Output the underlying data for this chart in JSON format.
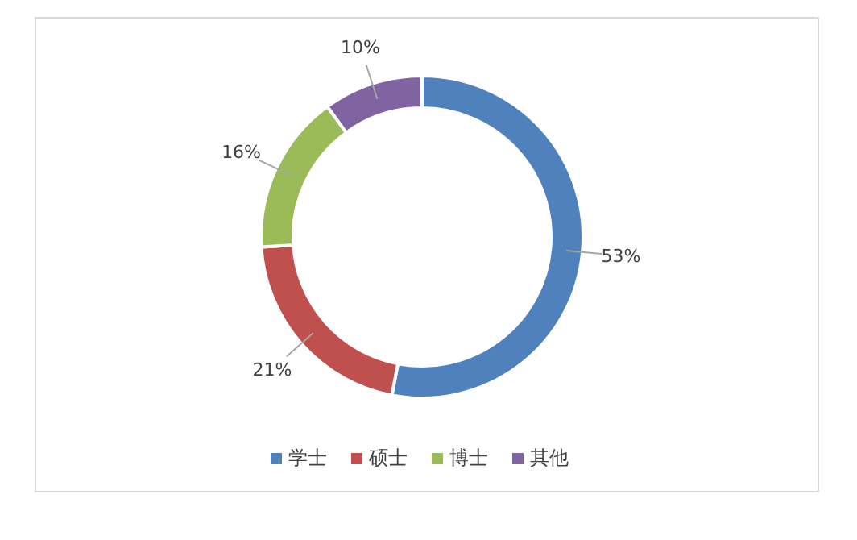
{
  "chart_data": {
    "type": "donut",
    "categories": [
      "学士",
      "硕士",
      "博士",
      "其他"
    ],
    "values": [
      53,
      21,
      16,
      10
    ],
    "value_labels": [
      "53%",
      "21%",
      "16%",
      "10%"
    ],
    "colors": [
      "#4f81bd",
      "#c0504d",
      "#9bbb59",
      "#8064a2"
    ],
    "legend": "bottom"
  }
}
